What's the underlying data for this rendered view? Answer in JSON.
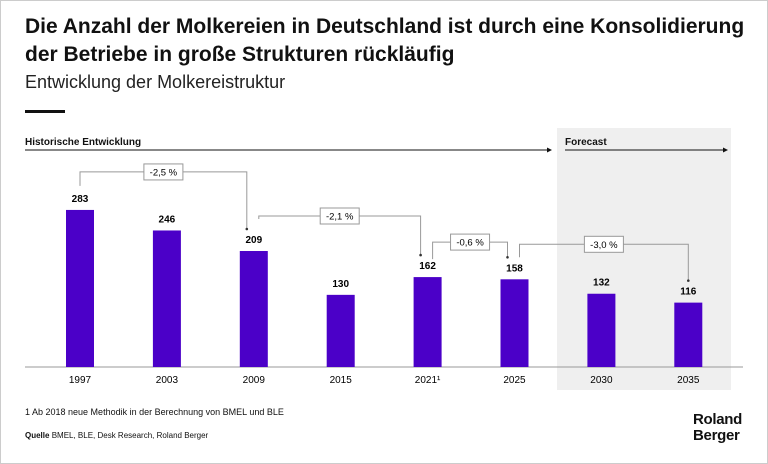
{
  "title": "Die Anzahl der Molkereien in Deutschland ist durch eine Konsolidierung der Betriebe in große Strukturen rückläufig",
  "subtitle": "Entwicklung der Molkereistruktur",
  "sections": {
    "historic": "Historische Entwicklung",
    "forecast": "Forecast"
  },
  "footnote": "1 Ab 2018 neue Methodik in der Berechnung von BMEL und BLE",
  "source_label": "Quelle",
  "source": "BMEL, BLE, Desk Research, Roland Berger",
  "logo": [
    "Roland",
    "Berger"
  ],
  "chart_data": {
    "type": "bar",
    "categories": [
      "1997",
      "2003",
      "2009",
      "2015",
      "2021¹",
      "2025",
      "2030",
      "2035"
    ],
    "values": [
      283,
      246,
      209,
      130,
      162,
      158,
      132,
      116
    ],
    "forecast_from_index": 6,
    "ylim": [
      0,
      300
    ],
    "bar_color": "#4B00C8",
    "cagr_annotations": [
      {
        "from": "1997",
        "to": "2009",
        "label": "-2,5 %"
      },
      {
        "from": "2009",
        "to": "2021¹",
        "label": "-2,1 %"
      },
      {
        "from": "2021¹",
        "to": "2025",
        "label": "-0,6 %"
      },
      {
        "from": "2025",
        "to": "2035",
        "label": "-3,0 %"
      }
    ]
  }
}
